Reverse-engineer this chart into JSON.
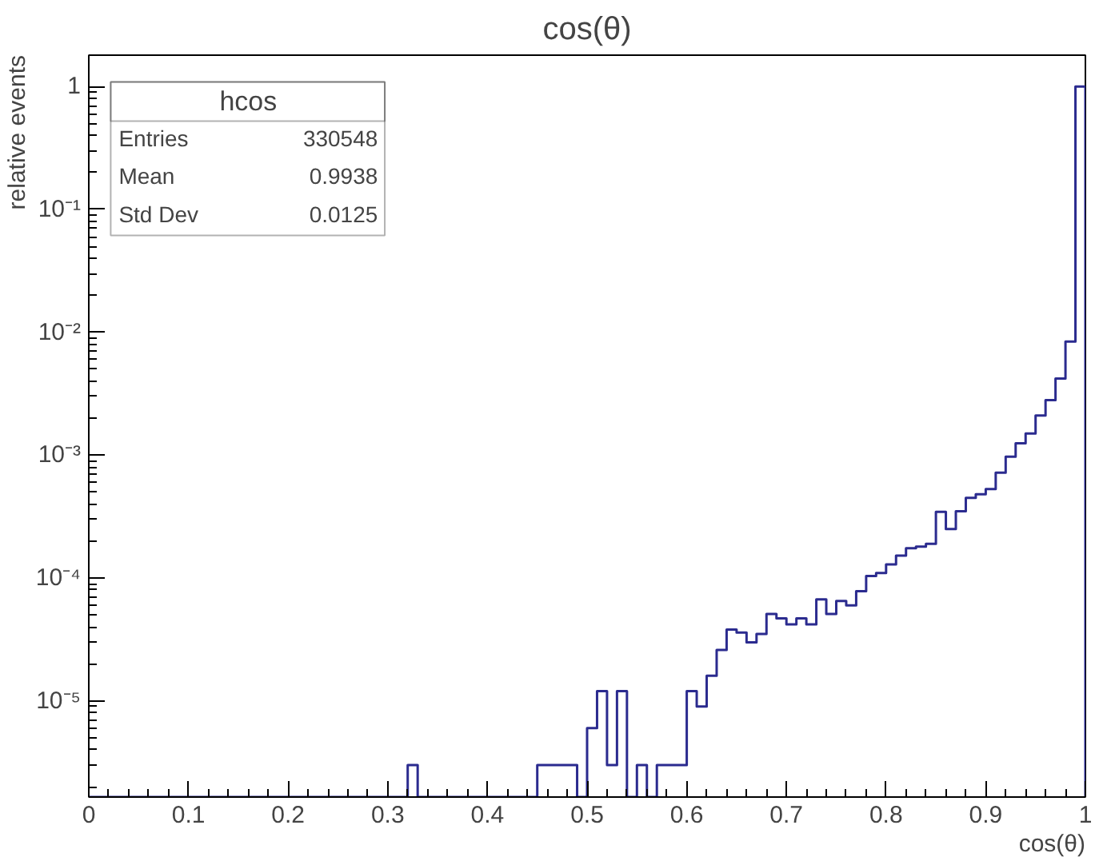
{
  "chart_data": {
    "type": "histogram",
    "title": "cos(θ)",
    "xlabel": "cos(θ)",
    "ylabel": "relative events",
    "bins": [
      0,
      0.01,
      0.02,
      0.03,
      0.04,
      0.05,
      0.06,
      0.07,
      0.08,
      0.09,
      0.1,
      0.11,
      0.12,
      0.13,
      0.14,
      0.15,
      0.16,
      0.17,
      0.18,
      0.19,
      0.2,
      0.21,
      0.22,
      0.23,
      0.24,
      0.25,
      0.26,
      0.27,
      0.28,
      0.29,
      0.3,
      0.31,
      0.32,
      0.33,
      0.34,
      0.35,
      0.36,
      0.37,
      0.38,
      0.39,
      0.4,
      0.41,
      0.42,
      0.43,
      0.44,
      0.45,
      0.46,
      0.47,
      0.48,
      0.49,
      0.5,
      0.51,
      0.52,
      0.53,
      0.54,
      0.55,
      0.56,
      0.57,
      0.58,
      0.59,
      0.6,
      0.61,
      0.62,
      0.63,
      0.64,
      0.65,
      0.66,
      0.67,
      0.68,
      0.69,
      0.7,
      0.71,
      0.72,
      0.73,
      0.74,
      0.75,
      0.76,
      0.77,
      0.78,
      0.79,
      0.8,
      0.81,
      0.82,
      0.83,
      0.84,
      0.85,
      0.86,
      0.87,
      0.88,
      0.89,
      0.9,
      0.91,
      0.92,
      0.93,
      0.94,
      0.95,
      0.96,
      0.97,
      0.98,
      0.99,
      1
    ],
    "values": [
      null,
      null,
      null,
      null,
      null,
      null,
      null,
      null,
      null,
      null,
      null,
      null,
      null,
      null,
      null,
      null,
      null,
      null,
      null,
      null,
      null,
      null,
      null,
      null,
      null,
      null,
      null,
      null,
      null,
      null,
      null,
      null,
      3e-06,
      null,
      null,
      null,
      null,
      null,
      null,
      null,
      null,
      null,
      null,
      null,
      null,
      3e-06,
      3e-06,
      3e-06,
      3e-06,
      null,
      6e-06,
      1.2e-05,
      3e-06,
      1.2e-05,
      null,
      3e-06,
      null,
      3e-06,
      3e-06,
      3e-06,
      1.2e-05,
      9e-06,
      1.6e-05,
      2.6e-05,
      3.8e-05,
      3.6e-05,
      3e-05,
      3.5e-05,
      5.1e-05,
      4.7e-05,
      4.2e-05,
      4.7e-05,
      4.2e-05,
      6.7e-05,
      5.1e-05,
      6.5e-05,
      6e-05,
      7.8e-05,
      0.000104,
      0.00011,
      0.000129,
      0.000152,
      0.000175,
      0.00018,
      0.00019,
      0.000345,
      0.00025,
      0.00035,
      0.00045,
      0.00048,
      0.00053,
      0.00072,
      0.00097,
      0.00125,
      0.0015,
      0.0021,
      0.0028,
      0.0042,
      0.0084,
      1
    ],
    "color": "#2b2b8f",
    "xlim": [
      0,
      1
    ],
    "xticks": [
      0,
      0.1,
      0.2,
      0.3,
      0.4,
      0.5,
      0.6,
      0.7,
      0.8,
      0.9,
      1
    ],
    "ylim": [
      1.65e-06,
      1.8
    ],
    "yticks": [
      {
        "value": 1e-05,
        "label": "10⁻⁵"
      },
      {
        "value": 0.0001,
        "label": "10⁻⁴"
      },
      {
        "value": 0.001,
        "label": "10⁻³"
      },
      {
        "value": 0.01,
        "label": "10⁻²"
      },
      {
        "value": 0.1,
        "label": "10⁻¹"
      },
      1
    ],
    "log": "y",
    "grid": false,
    "annotations": [
      "hcos",
      "Entries",
      "330548",
      "Mean",
      "0.9938",
      "Std Dev",
      "0.0125"
    ]
  }
}
